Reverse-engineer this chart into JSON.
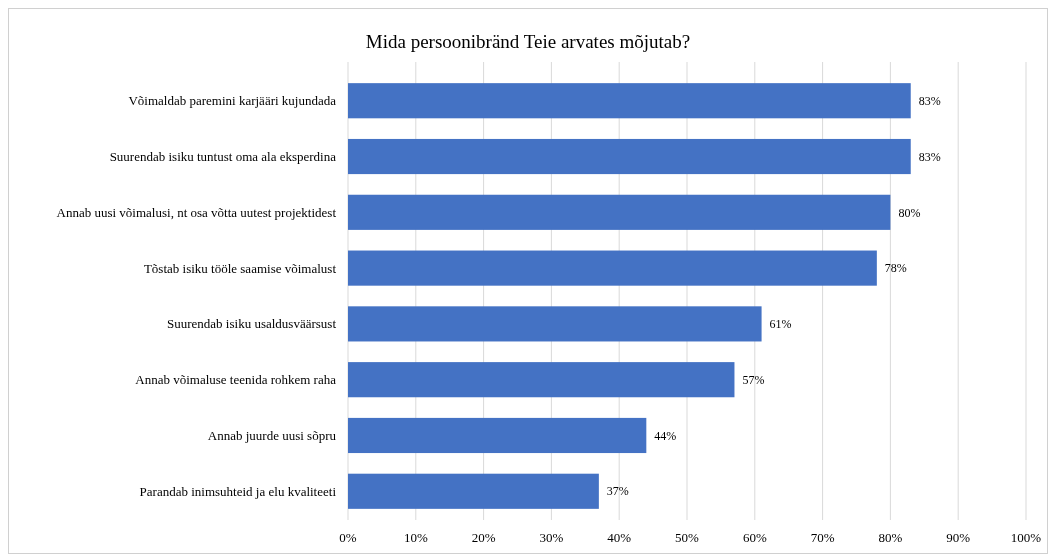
{
  "chart_data": {
    "type": "bar",
    "orientation": "horizontal",
    "title": "Mida persoonibränd Teie arvates mõjutab?",
    "categories": [
      "Võimaldab paremini karjääri kujundada",
      "Suurendab isiku tuntust oma ala eksperdina",
      "Annab uusi võimalusi, nt osa võtta uutest projektidest",
      "Tõstab isiku tööle saamise võimalust",
      "Suurendab isiku usaldusväärsust",
      "Annab võimaluse teenida rohkem raha",
      "Annab juurde uusi sõpru",
      "Parandab inimsuhteid ja elu kvaliteeti"
    ],
    "values": [
      83,
      83,
      80,
      78,
      61,
      57,
      44,
      37
    ],
    "value_labels": [
      "83%",
      "83%",
      "80%",
      "78%",
      "61%",
      "57%",
      "44%",
      "37%"
    ],
    "color": "#4472c4",
    "xlim": [
      0,
      100
    ],
    "xticks": [
      {
        "value": 0,
        "label": "0%"
      },
      {
        "value": 10,
        "label": "10%"
      },
      {
        "value": 20,
        "label": "20%"
      },
      {
        "value": 30,
        "label": "30%"
      },
      {
        "value": 40,
        "label": "40%"
      },
      {
        "value": 50,
        "label": "50%"
      },
      {
        "value": 60,
        "label": "60%"
      },
      {
        "value": 70,
        "label": "70%"
      },
      {
        "value": 80,
        "label": "80%"
      },
      {
        "value": 90,
        "label": "90%"
      },
      {
        "value": 100,
        "label": "100%"
      }
    ],
    "grid": "x"
  }
}
